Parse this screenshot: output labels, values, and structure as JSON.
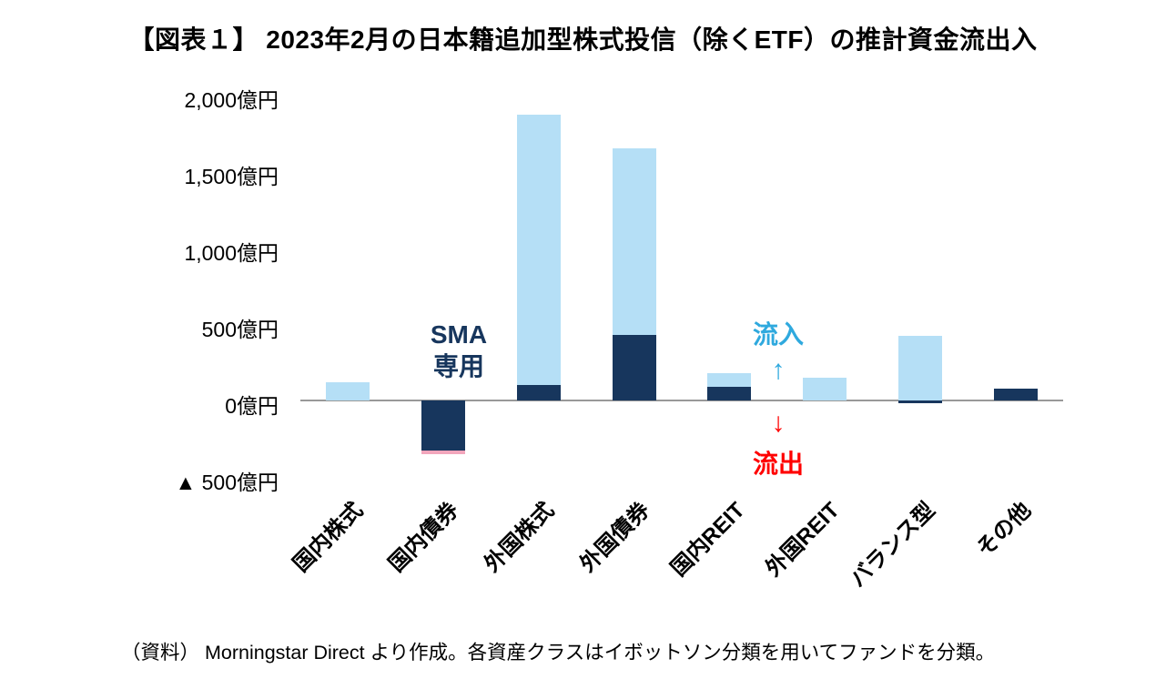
{
  "title": "【図表１】 2023年2月の日本籍追加型株式投信（除くETF）の推計資金流出入",
  "footer": "（資料） Morningstar Direct より作成。各資産クラスはイボットソン分類を用いてファンドを分類。",
  "annotations": {
    "sma_line1": "SMA",
    "sma_line2": "専用",
    "inflow": "流入",
    "inflow_arrow": "↑",
    "outflow_arrow": "↓",
    "outflow": "流出"
  },
  "colors": {
    "navy": "#17365D",
    "light_blue": "#B5DFF6",
    "pink": "#F2A6BC",
    "inflow_text": "#2FA9DE",
    "outflow_text": "#FF0000",
    "axis_line": "#999999"
  },
  "chart_data": {
    "type": "bar",
    "stacked": true,
    "title": "2023年2月の日本籍追加型株式投信（除くETF）の推計資金流出入",
    "unit": "億円",
    "categories": [
      "国内株式",
      "国内債券",
      "外国株式",
      "外国債券",
      "国内REIT",
      "外国REIT",
      "バランス型",
      "その他"
    ],
    "series": [
      {
        "name": "dark-navy-segment",
        "color": "#17365D",
        "values": [
          0,
          -330,
          100,
          430,
          90,
          0,
          -20,
          80
        ]
      },
      {
        "name": "light-blue-segment",
        "color": "#B5DFF6",
        "values": [
          120,
          0,
          1770,
          1220,
          90,
          150,
          420,
          0
        ]
      },
      {
        "name": "pink-segment",
        "color": "#F2A6BC",
        "values": [
          0,
          -20,
          0,
          0,
          0,
          0,
          0,
          0
        ]
      }
    ],
    "ylim": [
      -500,
      2000
    ],
    "yticks": [
      {
        "value": 2000,
        "label": "2,000億円"
      },
      {
        "value": 1500,
        "label": "1,500億円"
      },
      {
        "value": 1000,
        "label": "1,000億円"
      },
      {
        "value": 500,
        "label": "500億円"
      },
      {
        "value": 0,
        "label": "0億円"
      },
      {
        "value": -500,
        "label": "▲ 500億円"
      }
    ],
    "grid": false,
    "legend": "none"
  }
}
